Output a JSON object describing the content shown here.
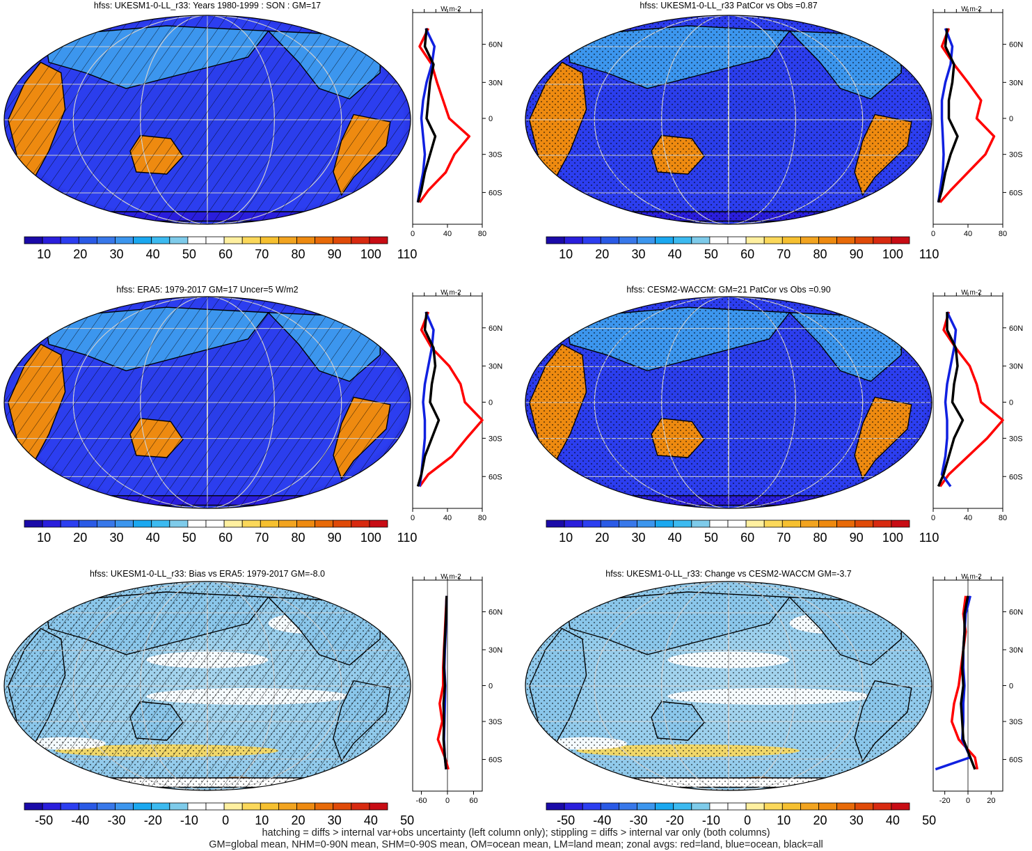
{
  "figure": {
    "footnote_1": "hatching = diffs > internal var+obs uncertainty (left column only); stippling = diffs > internal var only (both columns)",
    "footnote_2": "GM=global mean, NHM=0-90N mean, SHM=0-90S mean, OM=ocean mean, LM=land mean; zonal avgs: red=land, blue=ocean, black=all",
    "palettes": {
      "sequential": [
        "#1a0aa8",
        "#2a1edc",
        "#2c3ef0",
        "#2a5ae6",
        "#3878ea",
        "#3c96ee",
        "#1aa8f0",
        "#3cbaf0",
        "#7ecbea",
        "#ffffff",
        "#ffffff",
        "#fff0a0",
        "#fbd85a",
        "#f6c030",
        "#f2a420",
        "#ee8a10",
        "#e86a08",
        "#e04a08",
        "#d82a10",
        "#c80c14"
      ],
      "diverging": [
        "#1a0aa8",
        "#2a1edc",
        "#2c3ef0",
        "#2a5ae6",
        "#3878ea",
        "#3c96ee",
        "#1aa8f0",
        "#3cbaf0",
        "#7ecbea",
        "#ffffff",
        "#ffffff",
        "#fff0a0",
        "#fbd85a",
        "#f6c030",
        "#f2a420",
        "#ee8a10",
        "#e86a08",
        "#e04a08",
        "#d82a10",
        "#c80c14"
      ]
    },
    "lat_ticks": [
      "60N",
      "30N",
      "0",
      "30S",
      "60S"
    ],
    "unit": "W m-2",
    "line_colors": {
      "land": "#ff0000",
      "ocean": "#1020e0",
      "all": "#000000"
    }
  },
  "chart_data": [
    {
      "type": "heatmap",
      "title": "hfss: UKESM1-0-LL_r33: Years 1980-1999 : SON : GM=17",
      "colorbar": {
        "labels": [
          "10",
          "20",
          "30",
          "40",
          "50",
          "60",
          "70",
          "80",
          "90",
          "100",
          "110"
        ],
        "palette": "sequential"
      },
      "zonal_profile": {
        "xlim": [
          0,
          80
        ],
        "x_ticks": [
          "0",
          "40",
          "80"
        ],
        "lat": [
          75,
          60,
          45,
          30,
          15,
          0,
          -15,
          -30,
          -45,
          -60,
          -70
        ],
        "land": [
          18,
          8,
          22,
          28,
          35,
          42,
          65,
          48,
          38,
          18,
          8
        ],
        "ocean": [
          15,
          25,
          22,
          16,
          12,
          10,
          12,
          14,
          12,
          8,
          6
        ],
        "all": [
          16,
          14,
          24,
          20,
          18,
          16,
          26,
          20,
          14,
          10,
          6
        ]
      },
      "hatching": true,
      "stippling": false
    },
    {
      "type": "heatmap",
      "title": "hfss: UKESM1-0-LL_r33 PatCor vs Obs =0.87",
      "colorbar": {
        "labels": [
          "10",
          "20",
          "30",
          "40",
          "50",
          "60",
          "70",
          "80",
          "90",
          "100",
          "110"
        ],
        "palette": "sequential"
      },
      "zonal_profile": {
        "xlim": [
          0,
          80
        ],
        "x_ticks": [
          "0",
          "40",
          "80"
        ],
        "lat": [
          75,
          60,
          45,
          30,
          15,
          0,
          -15,
          -30,
          -45,
          -60,
          -70
        ],
        "land": [
          18,
          10,
          24,
          40,
          55,
          50,
          70,
          60,
          40,
          20,
          8
        ],
        "ocean": [
          14,
          22,
          20,
          14,
          10,
          10,
          11,
          12,
          11,
          8,
          6
        ],
        "all": [
          16,
          14,
          24,
          22,
          18,
          18,
          28,
          20,
          14,
          10,
          6
        ]
      },
      "hatching": false,
      "stippling": true
    },
    {
      "type": "heatmap",
      "title": "hfss: ERA5: 1979-2017 GM=17 Uncer=5 W/m2",
      "colorbar": {
        "labels": [
          "10",
          "20",
          "30",
          "40",
          "50",
          "60",
          "70",
          "80",
          "90",
          "100",
          "110"
        ],
        "palette": "sequential"
      },
      "zonal_profile": {
        "xlim": [
          0,
          80
        ],
        "x_ticks": [
          "0",
          "40",
          "80"
        ],
        "lat": [
          75,
          60,
          45,
          30,
          15,
          0,
          -15,
          -30,
          -45,
          -60,
          -70
        ],
        "land": [
          18,
          10,
          22,
          42,
          55,
          60,
          80,
          62,
          45,
          18,
          8
        ],
        "ocean": [
          15,
          24,
          22,
          18,
          14,
          12,
          14,
          14,
          12,
          10,
          8
        ],
        "all": [
          16,
          14,
          24,
          26,
          22,
          20,
          30,
          22,
          14,
          10,
          6
        ]
      },
      "hatching": true,
      "stippling": false
    },
    {
      "type": "heatmap",
      "title": "hfss: CESM2-WACCM: GM=21 PatCor vs Obs =0.90",
      "colorbar": {
        "labels": [
          "10",
          "20",
          "30",
          "40",
          "50",
          "60",
          "70",
          "80",
          "90",
          "100",
          "110"
        ],
        "palette": "sequential"
      },
      "zonal_profile": {
        "xlim": [
          0,
          80
        ],
        "x_ticks": [
          "0",
          "40",
          "80"
        ],
        "lat": [
          75,
          60,
          45,
          30,
          15,
          0,
          -15,
          -30,
          -45,
          -60,
          -70
        ],
        "land": [
          18,
          12,
          26,
          42,
          50,
          55,
          80,
          62,
          40,
          18,
          8
        ],
        "ocean": [
          16,
          26,
          24,
          20,
          16,
          14,
          16,
          16,
          14,
          10,
          20
        ],
        "all": [
          16,
          16,
          26,
          28,
          24,
          22,
          34,
          24,
          18,
          12,
          6
        ]
      },
      "hatching": false,
      "stippling": true
    },
    {
      "type": "heatmap",
      "title": "hfss: UKESM1-0-LL_r33: Bias vs ERA5: 1979-2017  GM=-8.0",
      "colorbar": {
        "labels": [
          "-50",
          "-40",
          "-30",
          "-20",
          "-10",
          "0",
          "10",
          "20",
          "30",
          "40",
          "50"
        ],
        "palette": "diverging"
      },
      "zonal_profile": {
        "xlim": [
          -80,
          80
        ],
        "x_ticks": [
          "-60",
          "0",
          "60"
        ],
        "lat": [
          75,
          60,
          45,
          30,
          15,
          0,
          -15,
          -30,
          -45,
          -60,
          -70
        ],
        "land": [
          -2,
          -4,
          -6,
          -8,
          -10,
          -10,
          -18,
          -12,
          -22,
          -6,
          2
        ],
        "ocean": [
          -2,
          -3,
          -4,
          -6,
          -7,
          -5,
          -6,
          -7,
          -8,
          -6,
          -3
        ],
        "all": [
          -2,
          -3,
          -5,
          -7,
          -8,
          -6,
          -9,
          -8,
          -9,
          -6,
          -3
        ]
      },
      "hatching": true,
      "stippling": true
    },
    {
      "type": "heatmap",
      "title": "hfss: UKESM1-0-LL_r33: Change vs CESM2-WACCM GM=-3.7",
      "colorbar": {
        "labels": [
          "-50",
          "-40",
          "-30",
          "-20",
          "-10",
          "0",
          "10",
          "20",
          "30",
          "40",
          "50"
        ],
        "palette": "diverging"
      },
      "zonal_profile": {
        "xlim": [
          -30,
          30
        ],
        "x_ticks": [
          "-20",
          "0",
          "20"
        ],
        "lat": [
          75,
          60,
          45,
          30,
          15,
          0,
          -15,
          -30,
          -45,
          -60,
          -70
        ],
        "land": [
          -2,
          -4,
          -2,
          -4,
          -6,
          -8,
          -12,
          -14,
          -8,
          6,
          8
        ],
        "ocean": [
          2,
          -2,
          -3,
          -4,
          -4,
          -3,
          -4,
          -4,
          -5,
          2,
          -28
        ],
        "all": [
          0,
          -3,
          -3,
          -4,
          -5,
          -4,
          -6,
          -5,
          -4,
          2,
          6
        ]
      },
      "hatching": false,
      "stippling": true
    }
  ]
}
